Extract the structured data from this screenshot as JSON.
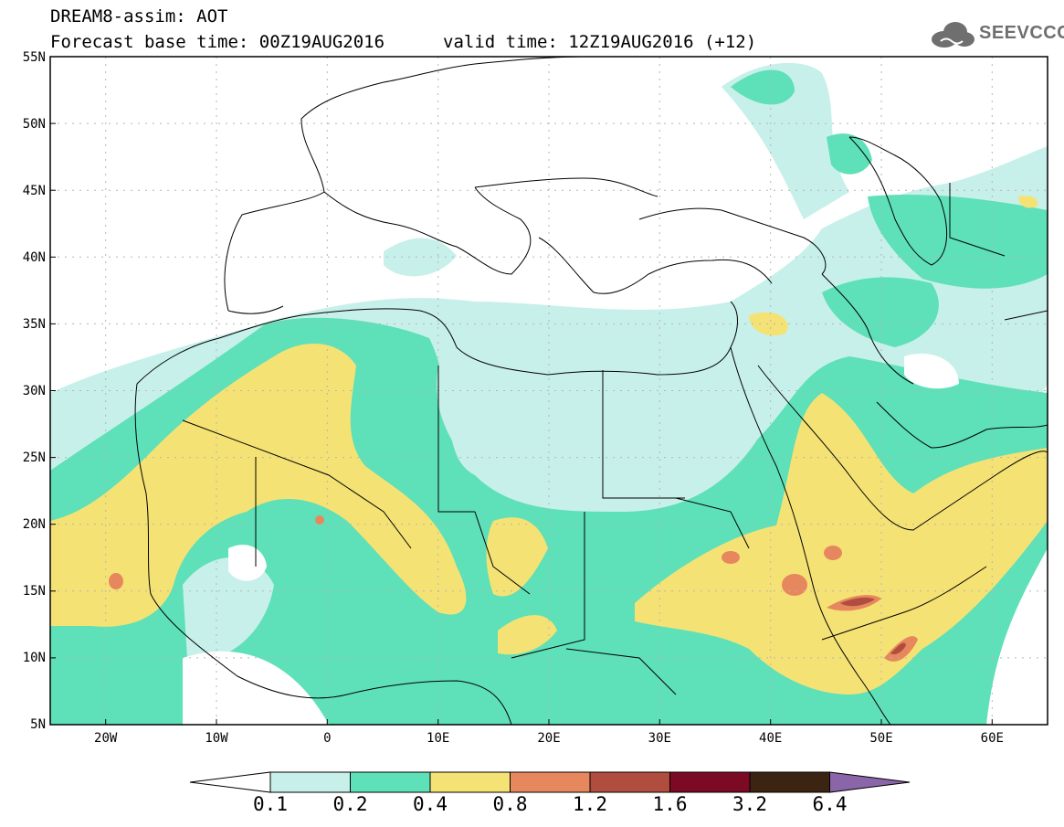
{
  "header": {
    "line1": "DREAM8-assim: AOT",
    "line2": "Forecast base time: 00Z19AUG2016",
    "valid": "valid time: 12Z19AUG2016 (+12)",
    "logo_text": "SEEVCCC"
  },
  "map": {
    "lat_labels": [
      "55N",
      "50N",
      "45N",
      "40N",
      "35N",
      "30N",
      "25N",
      "20N",
      "15N",
      "10N",
      "5N"
    ],
    "lon_labels": [
      "20W",
      "10W",
      "0",
      "10E",
      "20E",
      "30E",
      "40E",
      "50E",
      "60E"
    ],
    "extent": {
      "lon": [
        -25,
        65
      ],
      "lat": [
        5,
        55
      ]
    }
  },
  "legend": {
    "labels": [
      "0.1",
      "0.2",
      "0.4",
      "0.8",
      "1.2",
      "1.6",
      "3.2",
      "6.4"
    ],
    "colors": [
      "#ffffff",
      "#c7f0ea",
      "#5ee0b8",
      "#f5e275",
      "#e7875e",
      "#b04d3f",
      "#7d0a25",
      "#3b2412",
      "#8a66a8"
    ]
  },
  "colors": {
    "light": "#c7f0ea",
    "teal": "#5ee0b8",
    "yellow": "#f5e275",
    "salmon": "#e7875e",
    "brick": "#b04d3f"
  }
}
